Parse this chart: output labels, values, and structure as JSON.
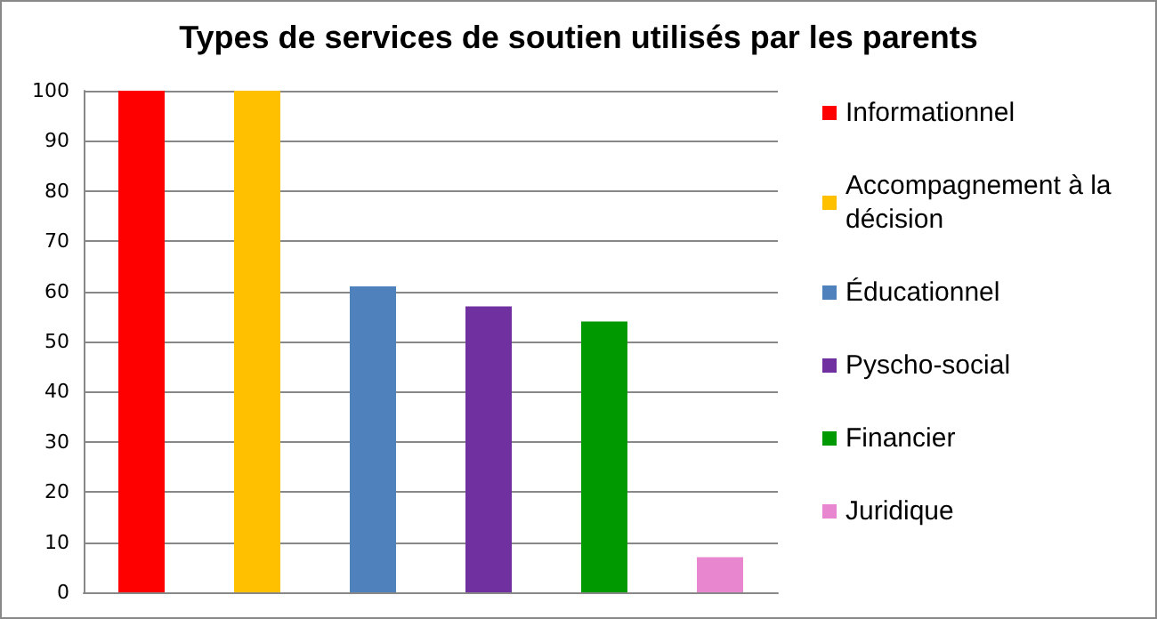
{
  "chart_data": {
    "type": "bar",
    "title": "Types de services de soutien utilisés par les parents",
    "categories": [
      null,
      null,
      null,
      null,
      null,
      null
    ],
    "series": [
      {
        "name": "Informationnel",
        "color": "#ff0000",
        "values": [
          100,
          null,
          null,
          null,
          null,
          null
        ]
      },
      {
        "name": "Accompagnement à la décision",
        "color": "#ffc000",
        "values": [
          null,
          100,
          null,
          null,
          null,
          null
        ]
      },
      {
        "name": "Éducationnel",
        "color": "#4f81bd",
        "values": [
          null,
          null,
          61,
          null,
          null,
          null
        ]
      },
      {
        "name": "Pyscho-social",
        "color": "#7030a0",
        "values": [
          null,
          null,
          null,
          57,
          null,
          null
        ]
      },
      {
        "name": "Financier",
        "color": "#009900",
        "values": [
          null,
          null,
          null,
          null,
          54,
          null
        ]
      },
      {
        "name": "Juridique",
        "color": "#e986d0",
        "values": [
          null,
          null,
          null,
          null,
          null,
          7
        ]
      }
    ],
    "ylim": [
      0,
      100
    ],
    "yticks": [
      0,
      10,
      20,
      30,
      40,
      50,
      60,
      70,
      80,
      90,
      100
    ],
    "grid": "y",
    "legend": "right"
  }
}
